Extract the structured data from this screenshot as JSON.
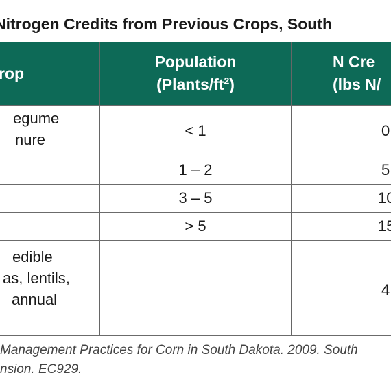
{
  "title": "Nitrogen Credits from Previous Crops, South",
  "table": {
    "headers": {
      "crop": "rop",
      "population_line1": "Population",
      "population_line2": "(Plants/ft",
      "population_sup": "2",
      "population_line2_end": ")",
      "ncredit_line1": "N Cre",
      "ncredit_line2": "(lbs N/"
    },
    "rows": [
      {
        "crop_line1": "egume",
        "crop_line2": "nure",
        "population": "< 1",
        "credit": "0"
      },
      {
        "population": "1 – 2",
        "credit": "5"
      },
      {
        "population": "3 – 5",
        "credit": "10"
      },
      {
        "population": "> 5",
        "credit": "15"
      },
      {
        "crop_line1": "edible",
        "crop_line2": "as, lentils,",
        "crop_line3": "annual",
        "population": "",
        "credit": "4"
      }
    ]
  },
  "footnote": {
    "line1": "Management Practices for Corn in South Dakota. 2009. South",
    "line2": "nsion. EC929."
  },
  "colors": {
    "header_bg": "#0d6a57",
    "header_text": "#ffffff",
    "rule": "#6b6b6b"
  }
}
